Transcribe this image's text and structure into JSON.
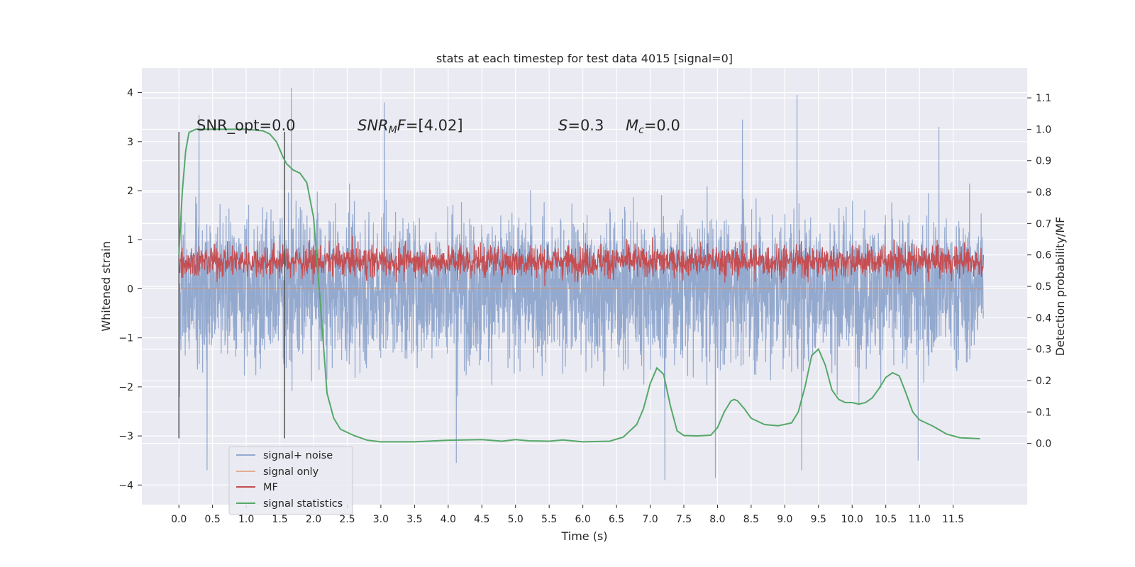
{
  "chart_data": {
    "type": "line",
    "title": "stats at each timestep for test data 4015 [signal=0]",
    "xlabel": "Time (s)",
    "ylabel_left": "Whitened strain",
    "ylabel_right": "Detection probability/MF",
    "xlim": [
      -0.55,
      12.6
    ],
    "ylim_left": [
      -4.4,
      4.5
    ],
    "ylim_right": [
      -0.195,
      1.195
    ],
    "xticks": [
      0.0,
      0.5,
      1.0,
      1.5,
      2.0,
      2.5,
      3.0,
      3.5,
      4.0,
      4.5,
      5.0,
      5.5,
      6.0,
      6.5,
      7.0,
      7.5,
      8.0,
      8.5,
      9.0,
      9.5,
      10.0,
      10.5,
      11.0,
      11.5
    ],
    "xtick_labels": [
      "0.0",
      "0.5",
      "1.0",
      "1.5",
      "2.0",
      "2.5",
      "3.0",
      "3.5",
      "4.0",
      "4.5",
      "5.0",
      "5.5",
      "6.0",
      "6.5",
      "7.0",
      "7.5",
      "8.0",
      "8.5",
      "9.0",
      "9.5",
      "10.0",
      "10.5",
      "11.0",
      "11.5"
    ],
    "yticks_left": [
      -4,
      -3,
      -2,
      -1,
      0,
      1,
      2,
      3,
      4
    ],
    "ytick_labels_left": [
      "−4",
      "−3",
      "−2",
      "−1",
      "0",
      "1",
      "2",
      "3",
      "4"
    ],
    "yticks_right": [
      0.0,
      0.1,
      0.2,
      0.3,
      0.4,
      0.5,
      0.6,
      0.7,
      0.8,
      0.9,
      1.0,
      1.1
    ],
    "ytick_labels_right": [
      "0.0",
      "0.1",
      "0.2",
      "0.3",
      "0.4",
      "0.5",
      "0.6",
      "0.7",
      "0.8",
      "0.9",
      "1.0",
      "1.1"
    ],
    "grid": true,
    "legend_position": "lower-left",
    "colors": {
      "signal_noise": "#4c72b0",
      "signal_only": "#dd8452",
      "mf": "#c44e52",
      "signal_statistics": "#55a868",
      "background": "#eaeaf2",
      "vline": "#555555"
    },
    "series": [
      {
        "name": "signal+ noise",
        "axis": "left",
        "description": "dense whitened noise trace",
        "x_range": [
          0.0,
          11.95
        ],
        "y_range": [
          -3.9,
          4.1
        ],
        "peaks": [
          {
            "x": 1.67,
            "y": 4.1
          },
          {
            "x": 9.18,
            "y": 3.95
          },
          {
            "x": 3.05,
            "y": 3.8
          },
          {
            "x": 0.3,
            "y": 3.55
          },
          {
            "x": 8.37,
            "y": 3.45
          },
          {
            "x": 11.29,
            "y": 3.3
          }
        ],
        "troughs": [
          {
            "x": 7.22,
            "y": -3.9
          },
          {
            "x": 7.97,
            "y": -3.85
          },
          {
            "x": 9.25,
            "y": -3.7
          },
          {
            "x": 0.42,
            "y": -3.7
          },
          {
            "x": 4.12,
            "y": -3.55
          },
          {
            "x": 10.98,
            "y": -3.5
          }
        ]
      },
      {
        "name": "signal only",
        "axis": "left",
        "values_constant": 0.0
      },
      {
        "name": "MF",
        "axis": "right",
        "description": "matched filter output fluctuating between ~0.5 and ~0.65",
        "x_range": [
          0.0,
          11.95
        ],
        "y_range": [
          0.5,
          0.66
        ]
      },
      {
        "name": "signal statistics",
        "axis": "right",
        "x": [
          0.0,
          0.05,
          0.1,
          0.15,
          0.25,
          0.5,
          1.0,
          1.25,
          1.35,
          1.45,
          1.55,
          1.6,
          1.7,
          1.8,
          1.9,
          2.0,
          2.1,
          2.2,
          2.3,
          2.4,
          2.6,
          2.8,
          3.0,
          3.5,
          4.0,
          4.5,
          4.8,
          5.0,
          5.2,
          5.5,
          5.7,
          6.0,
          6.4,
          6.6,
          6.8,
          6.9,
          7.0,
          7.1,
          7.2,
          7.3,
          7.4,
          7.5,
          7.7,
          7.9,
          8.0,
          8.1,
          8.2,
          8.25,
          8.3,
          8.4,
          8.5,
          8.7,
          8.9,
          9.1,
          9.2,
          9.3,
          9.4,
          9.5,
          9.6,
          9.7,
          9.8,
          9.9,
          10.0,
          10.1,
          10.2,
          10.3,
          10.4,
          10.5,
          10.6,
          10.7,
          10.8,
          10.9,
          11.0,
          11.2,
          11.4,
          11.6,
          11.9
        ],
        "values": [
          0.6,
          0.8,
          0.93,
          0.99,
          1.0,
          1.0,
          1.0,
          0.995,
          0.985,
          0.96,
          0.91,
          0.89,
          0.87,
          0.86,
          0.83,
          0.72,
          0.45,
          0.16,
          0.08,
          0.045,
          0.025,
          0.01,
          0.005,
          0.005,
          0.01,
          0.012,
          0.007,
          0.012,
          0.008,
          0.007,
          0.011,
          0.005,
          0.007,
          0.02,
          0.06,
          0.11,
          0.19,
          0.24,
          0.22,
          0.12,
          0.04,
          0.025,
          0.024,
          0.026,
          0.05,
          0.1,
          0.135,
          0.14,
          0.135,
          0.11,
          0.08,
          0.06,
          0.056,
          0.065,
          0.1,
          0.18,
          0.28,
          0.3,
          0.25,
          0.17,
          0.14,
          0.13,
          0.13,
          0.125,
          0.13,
          0.145,
          0.175,
          0.21,
          0.225,
          0.215,
          0.16,
          0.1,
          0.075,
          0.055,
          0.03,
          0.018,
          0.015
        ]
      }
    ],
    "vlines": [
      {
        "x": 0.0,
        "y_range": [
          -3.05,
          3.2
        ],
        "axis": "left"
      },
      {
        "x": 1.57,
        "y_range": [
          -3.05,
          3.2
        ],
        "axis": "left"
      }
    ],
    "annotations": {
      "snr_opt": "SNR_opt=0.0",
      "snr_mf": "=[4.02]",
      "snr_mf_symbol": "SNR",
      "snr_mf_sub": "M",
      "snr_mf_suffix": "F",
      "s_symbol": "S",
      "s_value": "=0.3",
      "mc_symbol": "M",
      "mc_sub": "c",
      "mc_value": "=0.0"
    }
  }
}
